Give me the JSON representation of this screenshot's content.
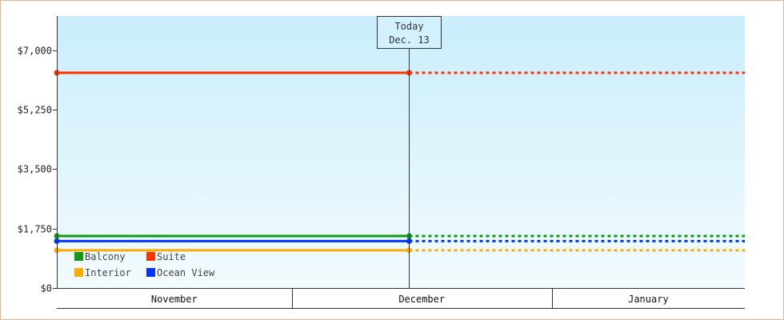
{
  "chart_data": {
    "type": "line",
    "ylim": [
      0,
      8000
    ],
    "y_ticks": [
      {
        "value": 0,
        "label": "$0"
      },
      {
        "value": 1750,
        "label": "$1,750"
      },
      {
        "value": 3500,
        "label": "$3,500"
      },
      {
        "value": 5250,
        "label": "$5,250"
      },
      {
        "value": 7000,
        "label": "$7,000"
      }
    ],
    "x_range": [
      "2024-11-01",
      "2025-01-22"
    ],
    "months": [
      {
        "label": "November",
        "start": "2024-11-01",
        "end": "2024-11-29"
      },
      {
        "label": "December",
        "start": "2024-11-29",
        "end": "2024-12-30"
      },
      {
        "label": "January",
        "start": "2024-12-30",
        "end": "2025-01-22"
      }
    ],
    "today": {
      "line1": "Today",
      "line2": "Dec. 13",
      "date": "2024-12-13"
    },
    "series": [
      {
        "name": "Suite",
        "color": "#ff3300",
        "points": [
          {
            "x": "2024-11-01",
            "y": 6330
          },
          {
            "x": "2024-12-13",
            "y": 6330
          }
        ],
        "projection_to": "2025-01-22"
      },
      {
        "name": "Balcony",
        "color": "#119911",
        "points": [
          {
            "x": "2024-11-01",
            "y": 1530
          },
          {
            "x": "2024-12-13",
            "y": 1530
          }
        ],
        "projection_to": "2025-01-22"
      },
      {
        "name": "Ocean View",
        "color": "#0033ff",
        "points": [
          {
            "x": "2024-11-01",
            "y": 1380
          },
          {
            "x": "2024-12-13",
            "y": 1380
          }
        ],
        "projection_to": "2025-01-22"
      },
      {
        "name": "Interior",
        "color": "#ffaa00",
        "points": [
          {
            "x": "2024-11-01",
            "y": 1110
          },
          {
            "x": "2024-12-13",
            "y": 1110
          }
        ],
        "projection_to": "2025-01-22"
      }
    ],
    "legend": [
      {
        "name": "Balcony",
        "color": "#119911"
      },
      {
        "name": "Suite",
        "color": "#ff3300"
      },
      {
        "name": "Interior",
        "color": "#ffaa00"
      },
      {
        "name": "Ocean View",
        "color": "#0033ff"
      }
    ],
    "legend_position": "bottom-left",
    "grid": false
  }
}
